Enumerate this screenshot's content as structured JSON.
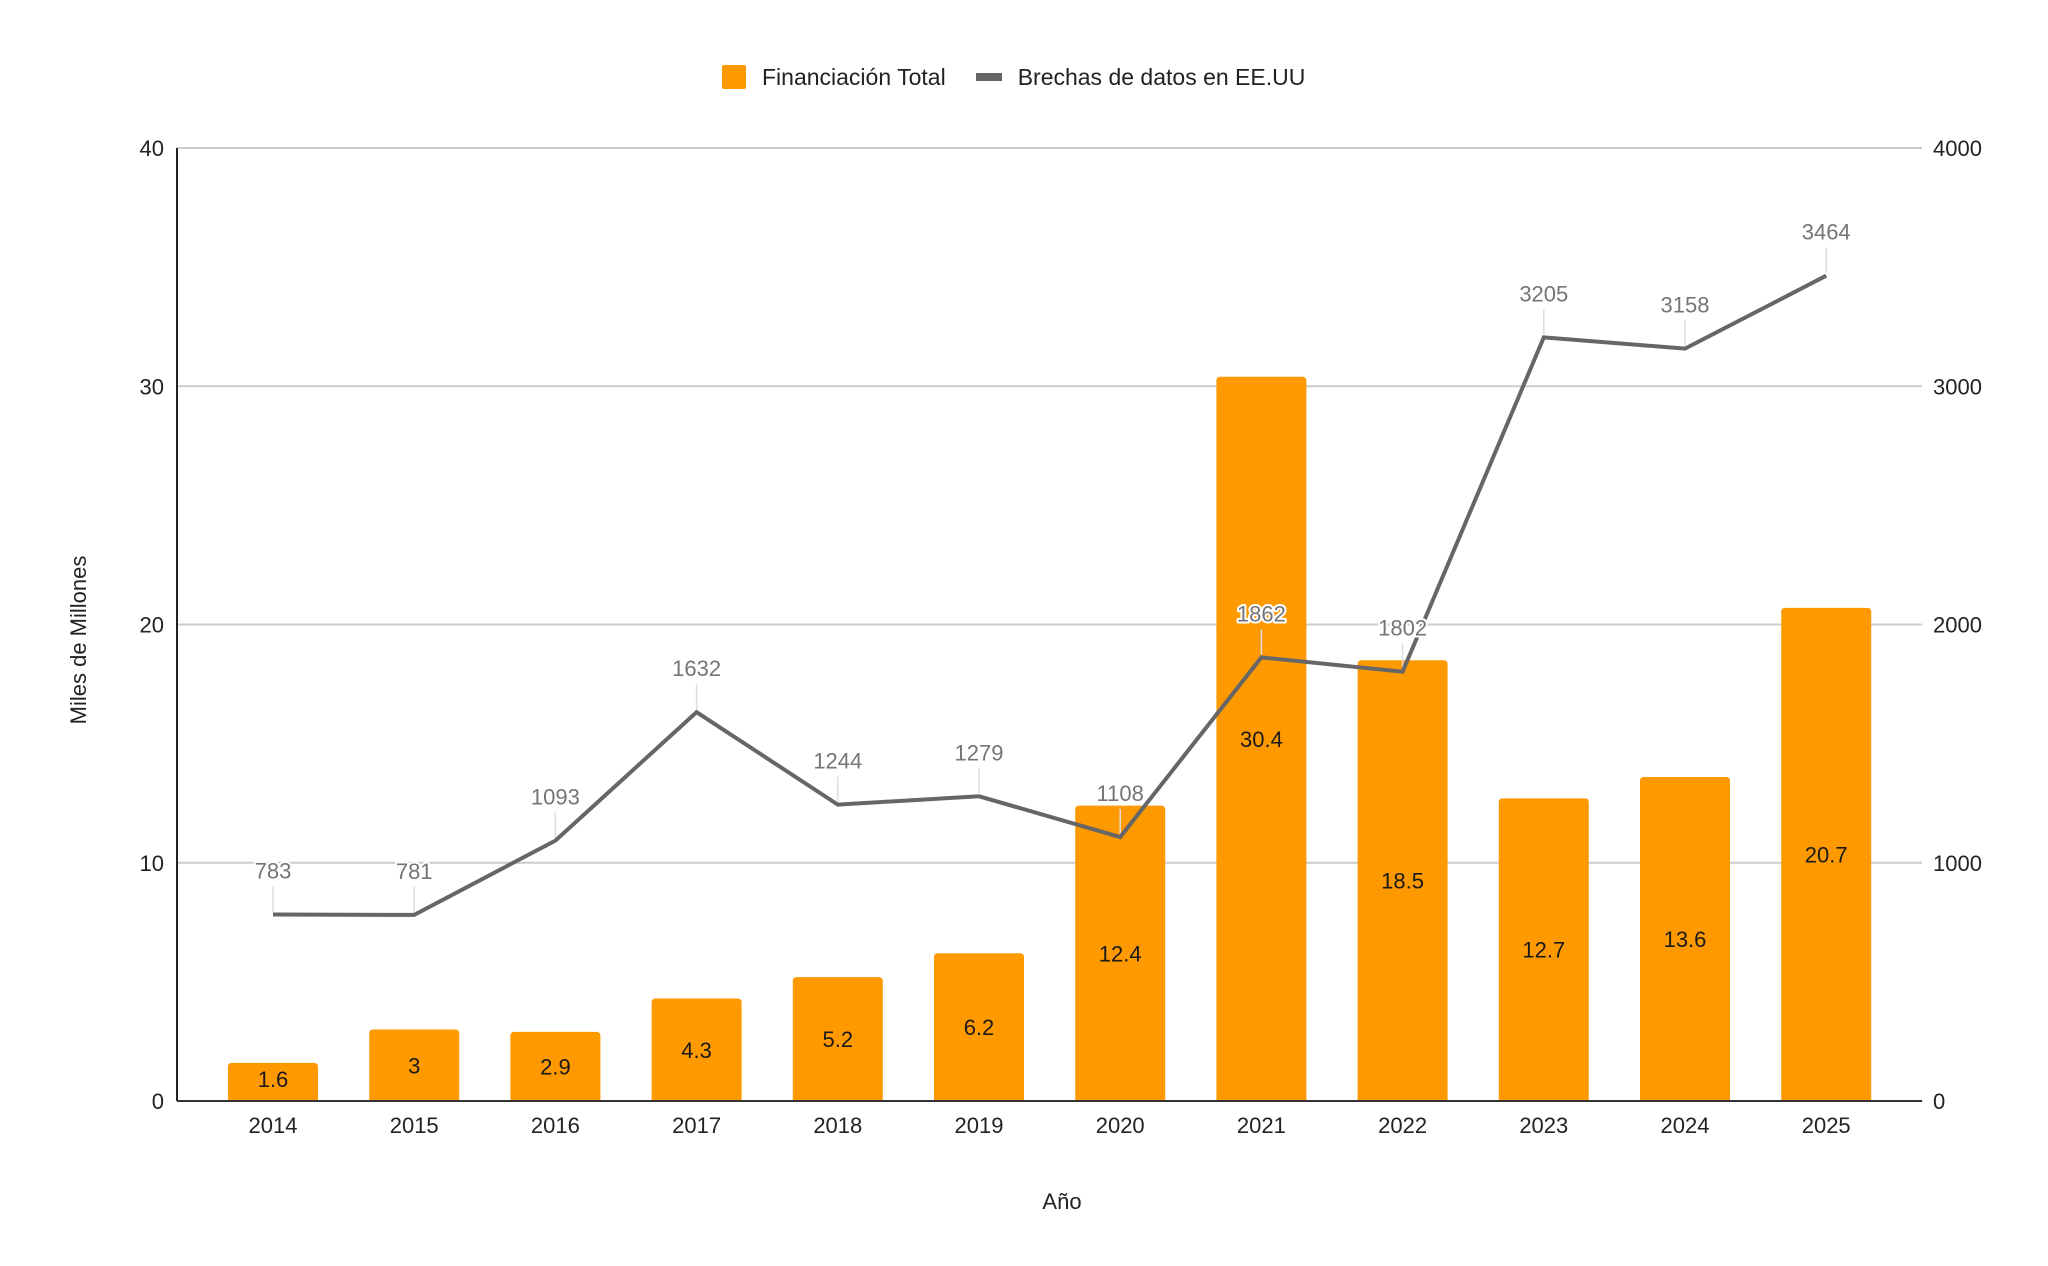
{
  "chart_data": {
    "type": "bar+line",
    "title": "",
    "categories": [
      "2014",
      "2015",
      "2016",
      "2017",
      "2018",
      "2019",
      "2020",
      "2021",
      "2022",
      "2023",
      "2024",
      "2025"
    ],
    "xlabel": "Año",
    "ylabel": "Miles de Millones",
    "ylabel_right": "",
    "ylim": [
      0,
      40
    ],
    "ylim_right": [
      0,
      4000
    ],
    "yticks": [
      "0",
      "10",
      "20",
      "30",
      "40"
    ],
    "yticks_right": [
      "0",
      "1000",
      "2000",
      "3000",
      "4000"
    ],
    "grid": true,
    "legend_position": "top-center",
    "series": [
      {
        "name": "Financiación Total",
        "type": "bar",
        "axis": "left",
        "color": "#FF9900",
        "values": [
          1.6,
          3,
          2.9,
          4.3,
          5.2,
          6.2,
          12.4,
          30.4,
          18.5,
          12.7,
          13.6,
          20.7
        ],
        "labels": [
          "1.6",
          "3",
          "2.9",
          "4.3",
          "5.2",
          "6.2",
          "12.4",
          "30.4",
          "18.5",
          "12.7",
          "13.6",
          "20.7"
        ]
      },
      {
        "name": "Brechas de datos en EE.UU",
        "type": "line",
        "axis": "right",
        "color": "#666666",
        "values": [
          783,
          781,
          1093,
          1632,
          1244,
          1279,
          1108,
          1862,
          1802,
          3205,
          3158,
          3464
        ],
        "labels": [
          "783",
          "781",
          "1093",
          "1632",
          "1244",
          "1279",
          "1108",
          "1862",
          "1802",
          "3205",
          "3158",
          "3464"
        ]
      }
    ]
  },
  "legend": {
    "items": [
      {
        "label": "Financiación Total",
        "color": "#FF9900"
      },
      {
        "label": "Brechas de datos en EE.UU",
        "color": "#666666"
      }
    ]
  }
}
